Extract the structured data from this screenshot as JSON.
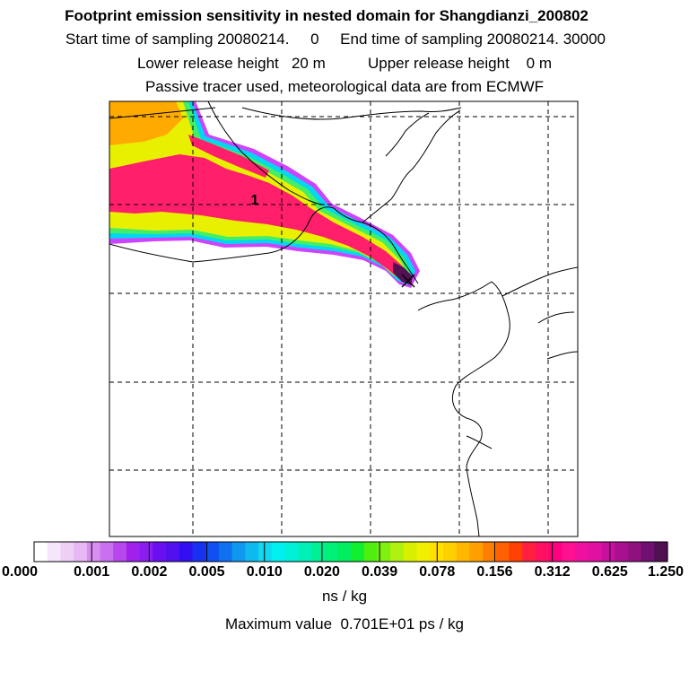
{
  "header": {
    "title": "Footprint emission sensitivity in nested domain for Shangdianzi_200802",
    "line2": "Start time of sampling 20080214.     0     End time of sampling 20080214. 30000",
    "line3": "Lower release height   20 m          Upper release height    0 m",
    "line4": "Passive tracer used, meteorological data are from ECMWF"
  },
  "map": {
    "contour_label": "1",
    "plume_colors": {
      "outer": "#cc44ff",
      "cyan": "#00d8f0",
      "green": "#44ee66",
      "yellow": "#e8f000",
      "orange": "#ffaa00",
      "red": "#ff1f6a",
      "peak": "#551055"
    },
    "grid_lines": "dashed",
    "marker": "receptor-cross"
  },
  "colorbar": {
    "tick_labels": [
      "0.000",
      "0.001",
      "0.002",
      "0.005",
      "0.010",
      "0.020",
      "0.039",
      "0.078",
      "0.156",
      "0.312",
      "0.625",
      "1.250"
    ],
    "colors": [
      "#ffffff",
      "#f6e6fb",
      "#eed0f7",
      "#e6b8f4",
      "#d890f0",
      "#c870ee",
      "#b848ee",
      "#a020ee",
      "#8a1ef0",
      "#6a10f0",
      "#5010f0",
      "#3010f0",
      "#1830f0",
      "#1050f0",
      "#1070f0",
      "#1098f0",
      "#10b8f0",
      "#10d8f0",
      "#00f0f0",
      "#00f0d8",
      "#00f0b8",
      "#00f098",
      "#00f078",
      "#00ee60",
      "#10ee30",
      "#50ee10",
      "#80f010",
      "#b0f010",
      "#d8f000",
      "#f0f000",
      "#ffe000",
      "#ffd000",
      "#ffb800",
      "#ffa000",
      "#ff8000",
      "#ff6000",
      "#ff4000",
      "#ff2040",
      "#ff1060",
      "#ff0080",
      "#ff1090",
      "#f010a0",
      "#e010a0",
      "#c810a0",
      "#a81090",
      "#901080",
      "#701070",
      "#501050"
    ],
    "units": "ns / kg",
    "max_value": "Maximum value  0.701E+01 ps / kg"
  }
}
